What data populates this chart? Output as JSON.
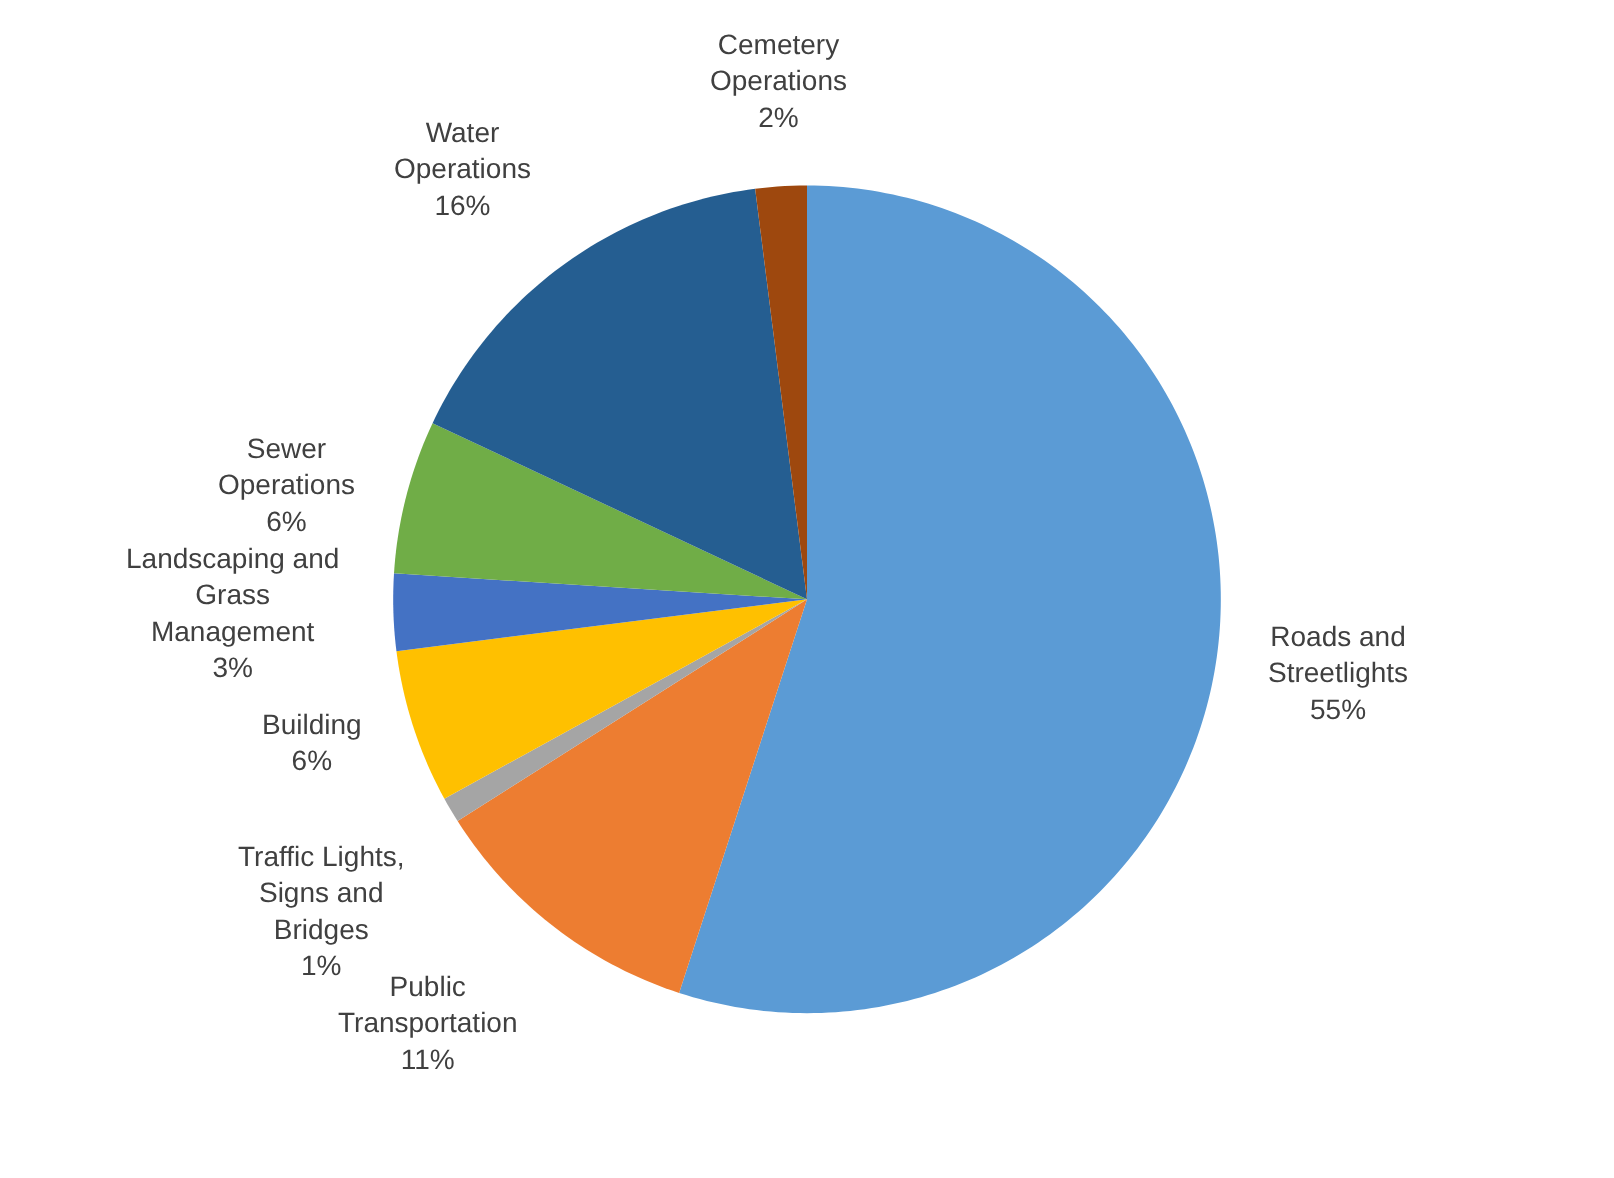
{
  "chart_data": {
    "type": "pie",
    "categories": [
      "Roads and Streetlights",
      "Public Transportation",
      "Traffic Lights, Signs and Bridges",
      "Building",
      "Landscaping and Grass Management",
      "Sewer Operations",
      "Water Operations",
      "Cemetery Operations"
    ],
    "values": [
      55,
      11,
      1,
      6,
      3,
      6,
      16,
      2
    ],
    "value_labels": [
      "55%",
      "11%",
      "1%",
      "6%",
      "3%",
      "6%",
      "16%",
      "2%"
    ],
    "colors": [
      "#5b9bd5",
      "#ed7d31",
      "#a5a5a5",
      "#ffc000",
      "#4472c4",
      "#70ad47",
      "#255e91",
      "#9e480e"
    ],
    "legend": false
  }
}
